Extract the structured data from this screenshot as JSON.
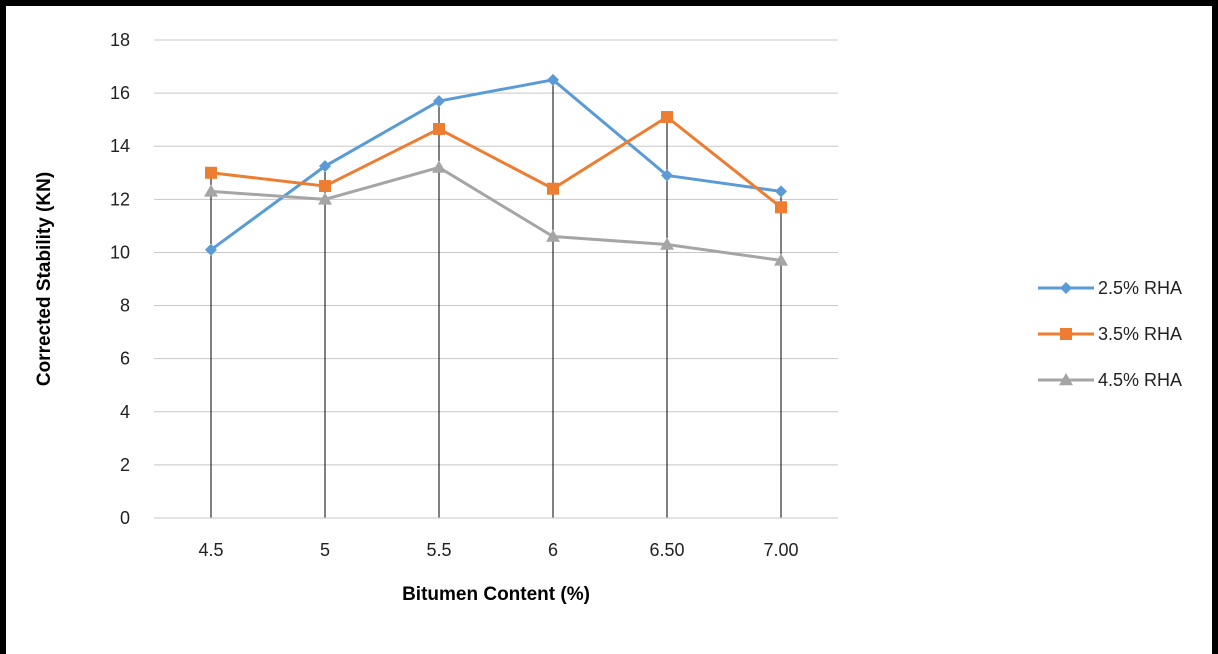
{
  "chart_data": {
    "type": "line",
    "categories": [
      "4.5",
      "5",
      "5.5",
      "6",
      "6.50",
      "7.00"
    ],
    "series": [
      {
        "name": "2.5% RHA",
        "values": [
          10.1,
          13.25,
          15.7,
          16.5,
          12.9,
          12.3
        ],
        "color": "#5b9bd5",
        "marker": "diamond"
      },
      {
        "name": "3.5% RHA",
        "values": [
          13.0,
          12.5,
          14.65,
          12.4,
          15.1,
          11.7
        ],
        "color": "#ed7d31",
        "marker": "square"
      },
      {
        "name": "4.5% RHA",
        "values": [
          12.3,
          12.0,
          13.2,
          10.6,
          10.3,
          9.7
        ],
        "color": "#a5a5a5",
        "marker": "triangle"
      }
    ],
    "xlabel": "Bitumen Content  (%)",
    "ylabel": "Corrected Stability (KN)",
    "ylim": [
      0,
      18
    ],
    "yticks": [
      0,
      2,
      4,
      6,
      8,
      10,
      12,
      14,
      16,
      18
    ],
    "grid": "horizontal",
    "drop_lines": true,
    "legend_position": "right"
  }
}
